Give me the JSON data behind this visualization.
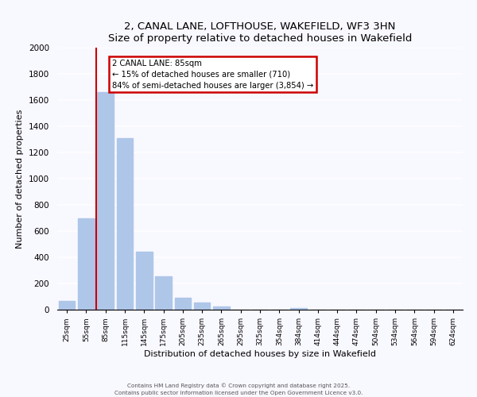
{
  "title": "2, CANAL LANE, LOFTHOUSE, WAKEFIELD, WF3 3HN",
  "subtitle": "Size of property relative to detached houses in Wakefield",
  "xlabel": "Distribution of detached houses by size in Wakefield",
  "ylabel": "Number of detached properties",
  "bar_labels": [
    "25sqm",
    "55sqm",
    "85sqm",
    "115sqm",
    "145sqm",
    "175sqm",
    "205sqm",
    "235sqm",
    "265sqm",
    "295sqm",
    "325sqm",
    "354sqm",
    "384sqm",
    "414sqm",
    "444sqm",
    "474sqm",
    "504sqm",
    "534sqm",
    "564sqm",
    "594sqm",
    "624sqm"
  ],
  "bar_values": [
    65,
    700,
    1660,
    1310,
    440,
    255,
    90,
    55,
    25,
    0,
    0,
    0,
    12,
    0,
    0,
    0,
    0,
    0,
    0,
    0,
    0
  ],
  "bar_color": "#aec6e8",
  "vline_x_idx": 2,
  "vline_color": "#cc0000",
  "annotation_title": "2 CANAL LANE: 85sqm",
  "annotation_line1": "← 15% of detached houses are smaller (710)",
  "annotation_line2": "84% of semi-detached houses are larger (3,854) →",
  "annotation_box_color": "#cc0000",
  "ylim": [
    0,
    2000
  ],
  "yticks": [
    0,
    200,
    400,
    600,
    800,
    1000,
    1200,
    1400,
    1600,
    1800,
    2000
  ],
  "bg_color": "#f8f8ff",
  "grid_color": "#ffffff",
  "footer1": "Contains HM Land Registry data © Crown copyright and database right 2025.",
  "footer2": "Contains public sector information licensed under the Open Government Licence v3.0."
}
